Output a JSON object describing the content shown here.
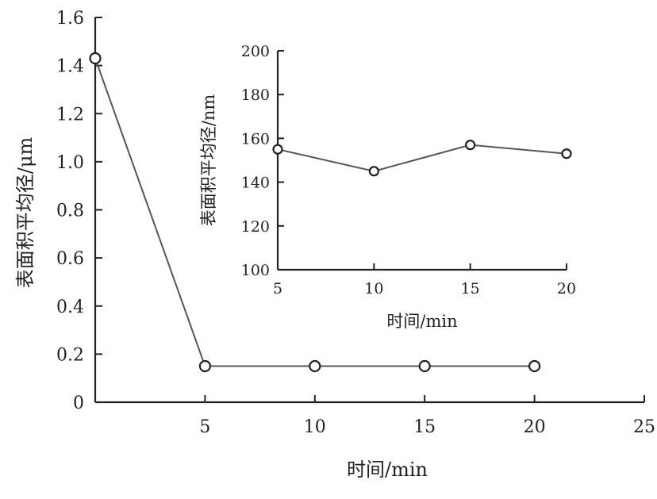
{
  "chart_data": [
    {
      "type": "line",
      "xlabel": "时间/min",
      "ylabel": "表面积平均径/μm",
      "xlim": [
        0,
        25
      ],
      "ylim": [
        0,
        1.6
      ],
      "x_ticks": [
        5,
        10,
        15,
        20,
        25
      ],
      "x_tick_labels": [
        "5",
        "10",
        "15",
        "20",
        "25"
      ],
      "y_ticks": [
        0,
        0.2,
        0.4,
        0.6,
        0.8,
        1.0,
        1.2,
        1.4,
        1.6
      ],
      "y_tick_labels": [
        "0",
        "0.2",
        "0.4",
        "0.6",
        "0.8",
        "1.0",
        "1.2",
        "1.4",
        "1.6"
      ],
      "grid": false,
      "series": [
        {
          "x": [
            0,
            5,
            10,
            15,
            20
          ],
          "y": [
            1.43,
            0.15,
            0.15,
            0.15,
            0.15
          ]
        }
      ]
    },
    {
      "type": "line",
      "xlabel": "时间/min",
      "ylabel": "表面积平均径/nm",
      "xlim": [
        5,
        20
      ],
      "ylim": [
        100,
        200
      ],
      "x_ticks": [
        5,
        10,
        15,
        20
      ],
      "x_tick_labels": [
        "5",
        "10",
        "15",
        "20"
      ],
      "y_ticks": [
        100,
        120,
        140,
        160,
        180,
        200
      ],
      "y_tick_labels": [
        "100",
        "120",
        "140",
        "160",
        "180",
        "200"
      ],
      "grid": false,
      "series": [
        {
          "x": [
            5,
            10,
            15,
            20
          ],
          "y": [
            155,
            145,
            157,
            153
          ]
        }
      ]
    }
  ]
}
